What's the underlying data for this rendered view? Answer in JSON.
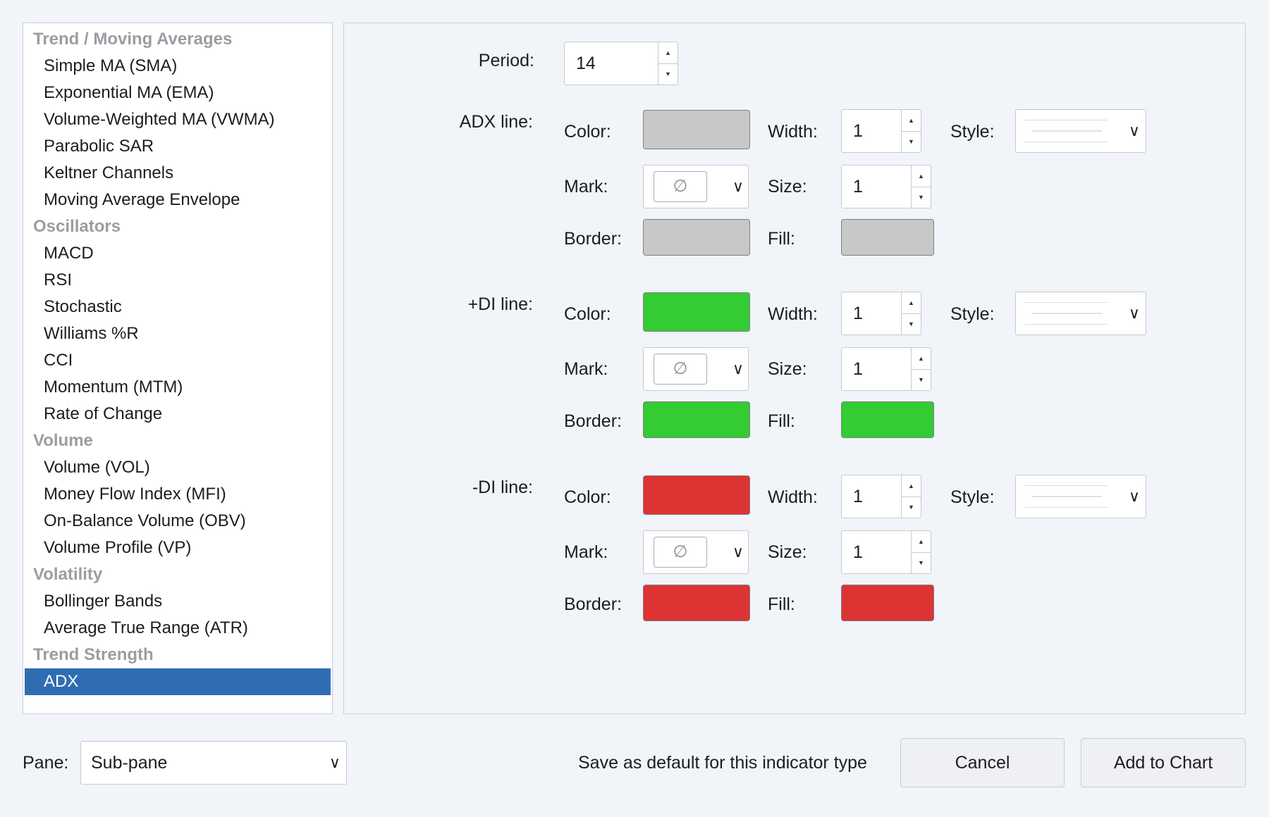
{
  "indicator_list": [
    {
      "type": "header",
      "label": "Trend / Moving Averages"
    },
    {
      "type": "item",
      "label": "Simple MA (SMA)"
    },
    {
      "type": "item",
      "label": "Exponential MA (EMA)"
    },
    {
      "type": "item",
      "label": "Volume-Weighted MA (VWMA)"
    },
    {
      "type": "item",
      "label": "Parabolic SAR"
    },
    {
      "type": "item",
      "label": "Keltner Channels"
    },
    {
      "type": "item",
      "label": "Moving Average Envelope"
    },
    {
      "type": "header",
      "label": "Oscillators"
    },
    {
      "type": "item",
      "label": "MACD"
    },
    {
      "type": "item",
      "label": "RSI"
    },
    {
      "type": "item",
      "label": "Stochastic"
    },
    {
      "type": "item",
      "label": "Williams %R"
    },
    {
      "type": "item",
      "label": "CCI"
    },
    {
      "type": "item",
      "label": "Momentum (MTM)"
    },
    {
      "type": "item",
      "label": "Rate of Change"
    },
    {
      "type": "header",
      "label": "Volume"
    },
    {
      "type": "item",
      "label": "Volume (VOL)"
    },
    {
      "type": "item",
      "label": "Money Flow Index (MFI)"
    },
    {
      "type": "item",
      "label": "On-Balance Volume (OBV)"
    },
    {
      "type": "item",
      "label": "Volume Profile (VP)"
    },
    {
      "type": "header",
      "label": "Volatility"
    },
    {
      "type": "item",
      "label": "Bollinger Bands"
    },
    {
      "type": "item",
      "label": "Average True Range (ATR)"
    },
    {
      "type": "header",
      "label": "Trend Strength"
    },
    {
      "type": "item",
      "label": "ADX",
      "selected": true
    }
  ],
  "settings": {
    "period_label": "Period:",
    "period_value": "14",
    "field_labels": {
      "color": "Color:",
      "width": "Width:",
      "style": "Style:",
      "mark": "Mark:",
      "size": "Size:",
      "border": "Border:",
      "fill": "Fill:"
    },
    "lines": [
      {
        "label": "ADX line:",
        "color": "#c8c8c8",
        "width": "1",
        "size": "1",
        "border": "#c8c8c8",
        "fill": "#c8c8c8",
        "mark_icon": "empty-set-icon"
      },
      {
        "label": "+DI line:",
        "color": "#33cc33",
        "width": "1",
        "size": "1",
        "border": "#33cc33",
        "fill": "#33cc33",
        "mark_icon": "empty-set-icon"
      },
      {
        "label": "-DI line:",
        "color": "#dd3333",
        "width": "1",
        "size": "1",
        "border": "#dd3333",
        "fill": "#dd3333",
        "mark_icon": "empty-set-icon"
      }
    ]
  },
  "footer": {
    "pane_label": "Pane:",
    "pane_value": "Sub-pane",
    "save_default_label": "Save as default for this indicator type",
    "cancel_label": "Cancel",
    "add_label": "Add to Chart"
  },
  "colors": {
    "selection": "#2f6db3",
    "background": "#f1f4f8"
  }
}
